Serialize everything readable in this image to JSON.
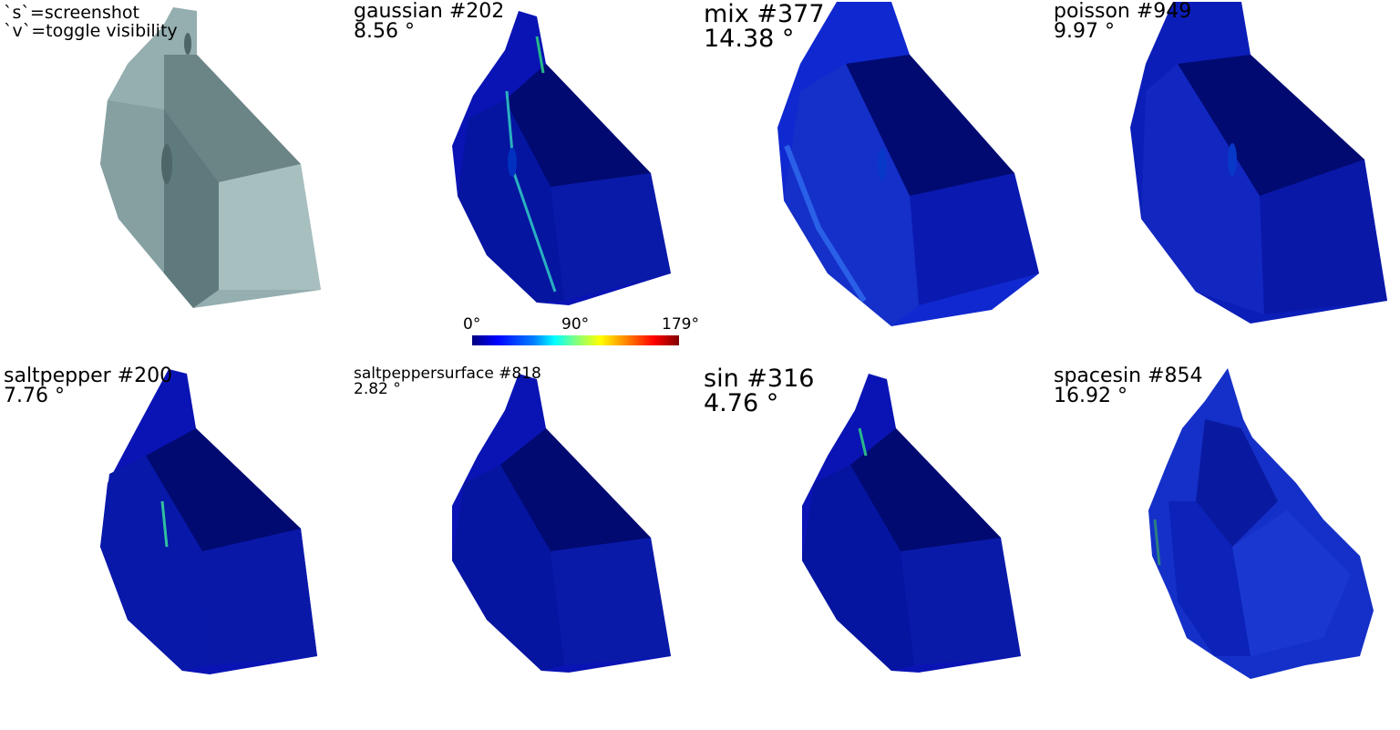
{
  "hints": {
    "screenshot": "`s`=screenshot",
    "visibility": "`v`=toggle visibility"
  },
  "colorbar": {
    "min": "0°",
    "mid": "90°",
    "max": "179°"
  },
  "panels": [
    {
      "name": "original",
      "title": "",
      "angle": ""
    },
    {
      "name": "gaussian",
      "title": "gaussian #202",
      "angle": "8.56 °"
    },
    {
      "name": "mix",
      "title": "mix #377",
      "angle": "14.38 °"
    },
    {
      "name": "poisson",
      "title": "poisson #949",
      "angle": "9.97 °"
    },
    {
      "name": "saltpepper",
      "title": "saltpepper #200",
      "angle": "7.76 °"
    },
    {
      "name": "saltpeppersurface",
      "title": "saltpeppersurface #818",
      "angle": "2.82 °"
    },
    {
      "name": "sin",
      "title": "sin #316",
      "angle": "4.76 °"
    },
    {
      "name": "spacesin",
      "title": "spacesin #854",
      "angle": "16.92 °"
    }
  ],
  "colors": {
    "background": "#ffffff",
    "mesh_gray": "#8fa8a9",
    "mesh_blue": "#0a14b4",
    "mesh_dark": "#00007a"
  }
}
